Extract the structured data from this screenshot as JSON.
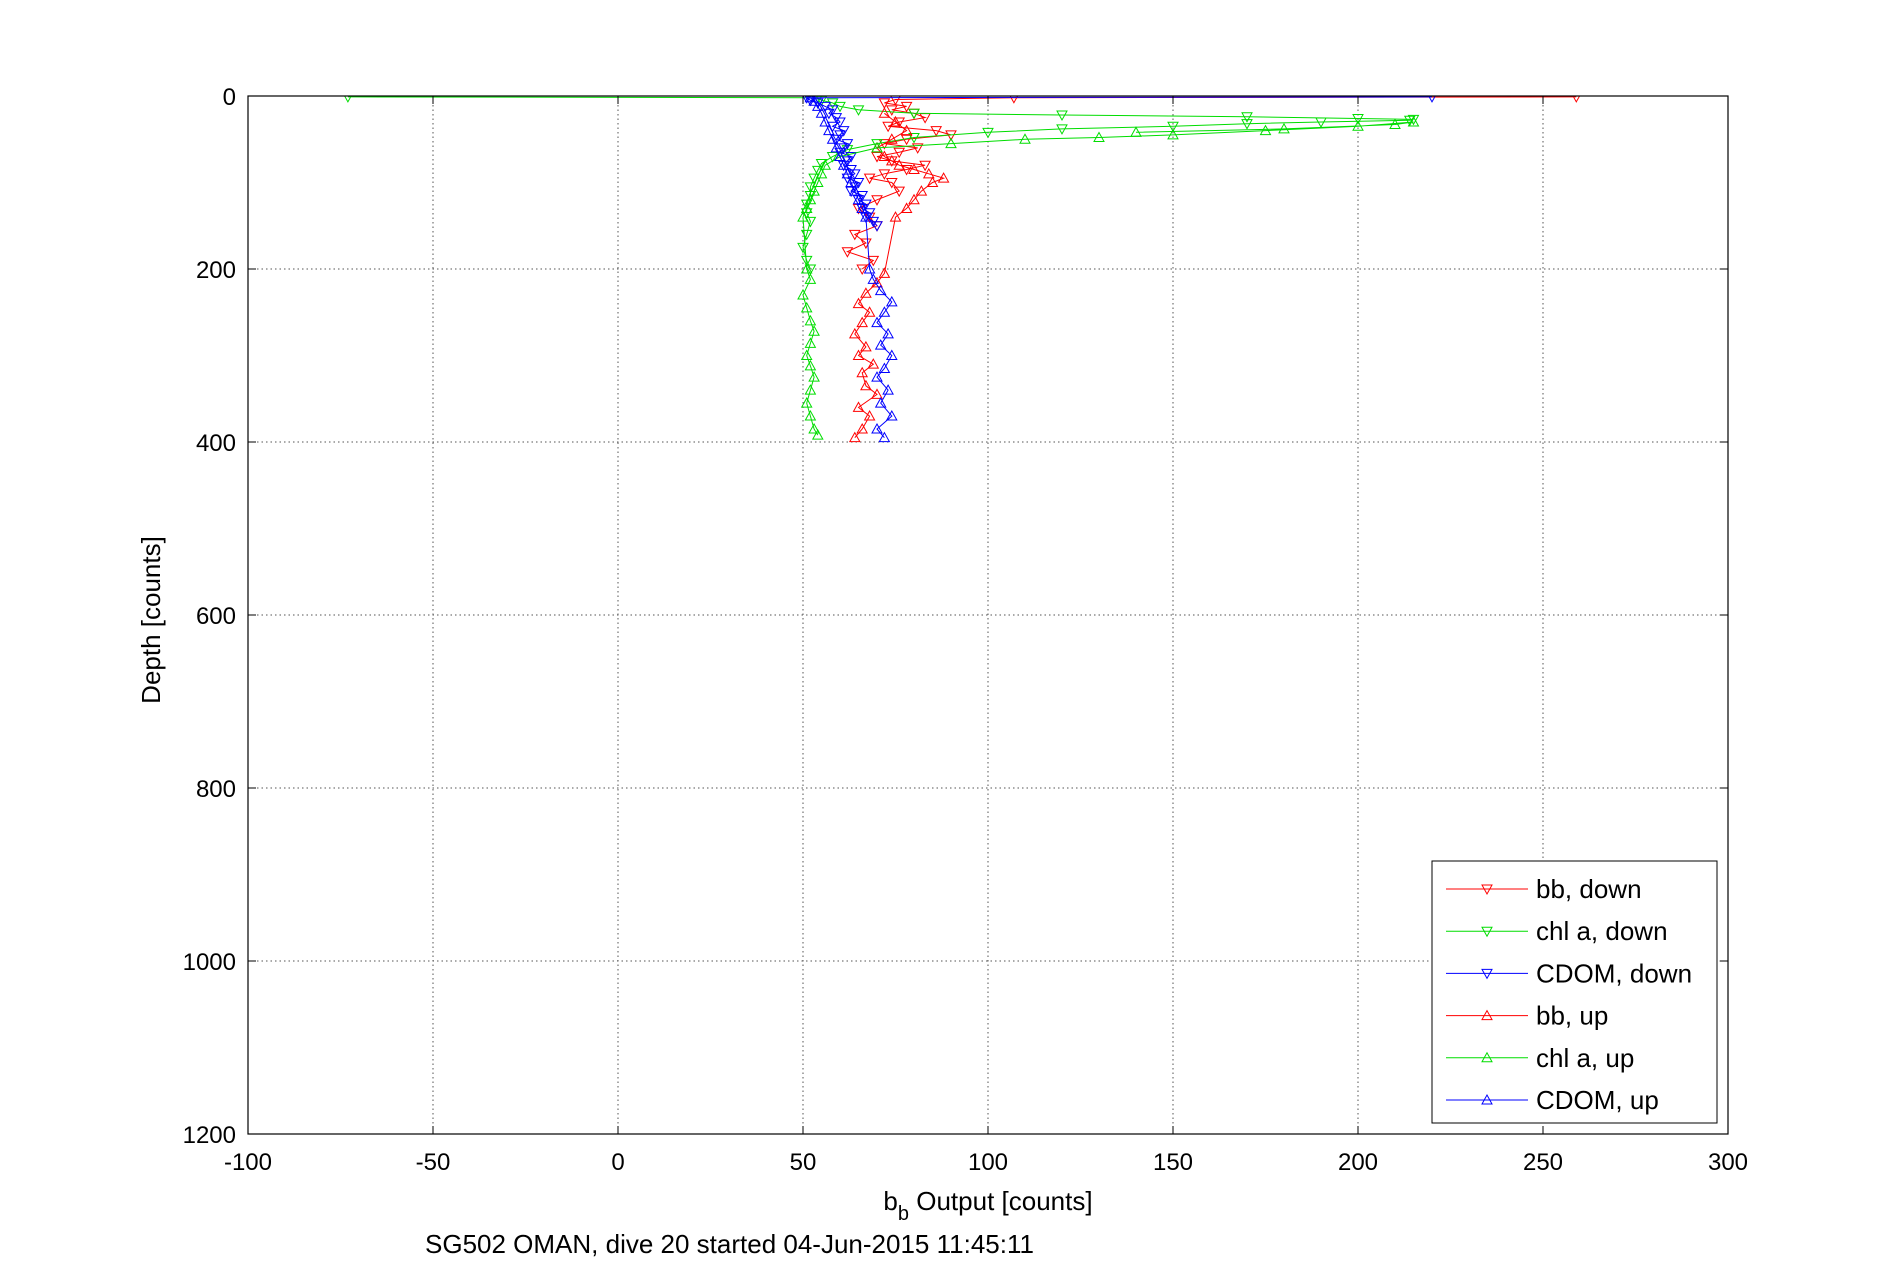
{
  "chart_data": {
    "type": "scatter",
    "title": "",
    "xlabel_main": "b",
    "xlabel_sub": "b",
    "xlabel_rest": " Output [counts]",
    "ylabel": "Depth [counts]",
    "caption": "SG502 OMAN, dive 20 started 04-Jun-2015 11:45:11",
    "xlim": [
      -100,
      300
    ],
    "ylim": [
      0,
      1200
    ],
    "y_reversed": true,
    "grid": true,
    "legend_position": "bottom-right",
    "xticks": [
      "-100",
      "-50",
      "0",
      "50",
      "100",
      "150",
      "200",
      "250",
      "300"
    ],
    "yticks": [
      "0",
      "200",
      "400",
      "600",
      "800",
      "1000",
      "1200"
    ],
    "series": [
      {
        "name": "bb, down",
        "color": "#ff0000",
        "marker": "down",
        "x": [
          259,
          107,
          75,
          72,
          78,
          74,
          80,
          83,
          76,
          73,
          86,
          90,
          78,
          72,
          81,
          76,
          70,
          74,
          83,
          78,
          72,
          68,
          74,
          76,
          70,
          65,
          68,
          70,
          64,
          67,
          62,
          69,
          66
        ],
        "y": [
          1,
          2,
          4,
          8,
          12,
          16,
          20,
          25,
          30,
          35,
          40,
          45,
          50,
          55,
          60,
          65,
          70,
          75,
          80,
          85,
          90,
          95,
          100,
          110,
          120,
          130,
          140,
          150,
          160,
          170,
          180,
          190,
          200
        ]
      },
      {
        "name": "chl a, down",
        "color": "#00dd00",
        "marker": "down",
        "x": [
          -73,
          54,
          55,
          58,
          60,
          65,
          80,
          120,
          170,
          200,
          215,
          214,
          190,
          170,
          150,
          120,
          100,
          80,
          70,
          62,
          58,
          55,
          54,
          53,
          52,
          52,
          51,
          51,
          52,
          51,
          50,
          51,
          52
        ],
        "y": [
          1,
          2,
          5,
          8,
          12,
          16,
          20,
          22,
          24,
          26,
          27,
          28,
          30,
          32,
          35,
          38,
          42,
          48,
          55,
          62,
          70,
          78,
          86,
          95,
          105,
          115,
          125,
          135,
          145,
          160,
          175,
          190,
          200
        ]
      },
      {
        "name": "CDOM, down",
        "color": "#0000ff",
        "marker": "down",
        "x": [
          220,
          51,
          52,
          54,
          56,
          58,
          57,
          59,
          60,
          58,
          61,
          60,
          59,
          62,
          61,
          60,
          63,
          62,
          61,
          63,
          64,
          62,
          65,
          64,
          63,
          66,
          65,
          67,
          66,
          68,
          67,
          69,
          70
        ],
        "y": [
          1,
          2,
          5,
          8,
          12,
          16,
          20,
          25,
          30,
          35,
          40,
          45,
          50,
          55,
          60,
          65,
          70,
          75,
          80,
          85,
          90,
          95,
          100,
          105,
          110,
          115,
          120,
          125,
          130,
          135,
          140,
          145,
          150
        ]
      },
      {
        "name": "bb, up",
        "color": "#ff0000",
        "marker": "up",
        "x": [
          64,
          66,
          68,
          65,
          70,
          67,
          66,
          69,
          65,
          67,
          64,
          66,
          68,
          65,
          67,
          70,
          72,
          75,
          78,
          80,
          82,
          85,
          88,
          84,
          80,
          76,
          74,
          72,
          70,
          74,
          78,
          75,
          72
        ],
        "y": [
          395,
          385,
          370,
          360,
          345,
          335,
          320,
          310,
          300,
          290,
          275,
          262,
          250,
          240,
          228,
          216,
          205,
          140,
          130,
          120,
          110,
          100,
          95,
          90,
          85,
          80,
          75,
          70,
          60,
          50,
          40,
          30,
          20
        ]
      },
      {
        "name": "chl a, up",
        "color": "#00dd00",
        "marker": "up",
        "x": [
          54,
          53,
          52,
          51,
          52,
          53,
          52,
          51,
          52,
          53,
          52,
          51,
          50,
          52,
          51,
          50,
          51,
          52,
          53,
          54,
          55,
          56,
          60,
          70,
          90,
          110,
          130,
          150,
          175,
          200,
          215,
          210,
          180,
          140
        ],
        "y": [
          392,
          385,
          370,
          355,
          340,
          325,
          312,
          300,
          286,
          272,
          260,
          245,
          230,
          212,
          200,
          140,
          130,
          120,
          110,
          100,
          90,
          80,
          70,
          60,
          55,
          50,
          48,
          45,
          40,
          35,
          30,
          33,
          38,
          42
        ]
      },
      {
        "name": "CDOM, up",
        "color": "#0000ff",
        "marker": "up",
        "x": [
          72,
          70,
          74,
          71,
          73,
          70,
          72,
          74,
          71,
          73,
          70,
          72,
          74,
          71,
          69,
          68,
          67,
          66,
          65,
          64,
          63,
          62,
          61,
          60,
          59,
          58,
          57,
          56,
          55,
          54,
          53,
          52
        ],
        "y": [
          395,
          385,
          370,
          355,
          340,
          325,
          315,
          300,
          288,
          275,
          262,
          250,
          238,
          225,
          212,
          200,
          140,
          130,
          120,
          110,
          100,
          90,
          80,
          70,
          60,
          50,
          40,
          30,
          20,
          12,
          6,
          2
        ]
      }
    ]
  }
}
